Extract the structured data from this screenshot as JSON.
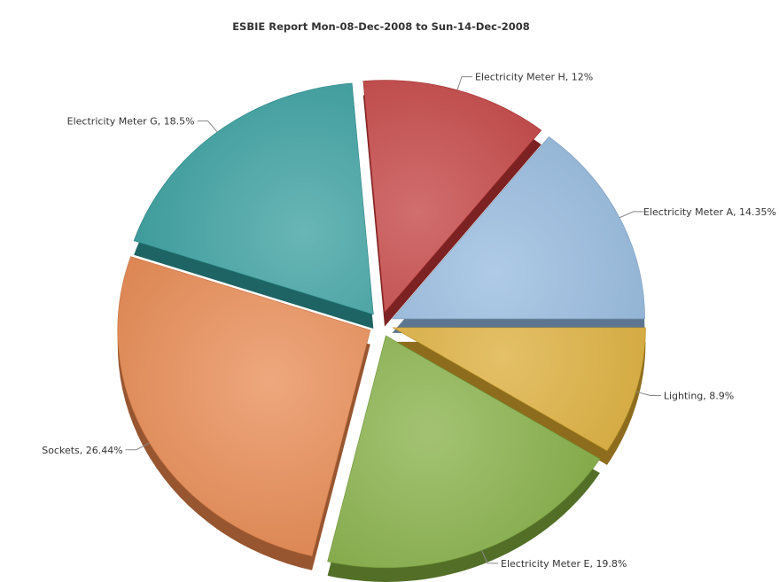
{
  "chart_data": {
    "type": "pie",
    "title": "ESBIE Report Mon-08-Dec-2008 to Sun-14-Dec-2008",
    "legend": "none",
    "slices": [
      {
        "name": "Electricity Meter A",
        "value": 14.35,
        "label": "Electricity Meter A, 14.35%",
        "color": "#8fb6dc"
      },
      {
        "name": "Electricity Meter H",
        "value": 12,
        "label": "Electricity Meter H, 12%",
        "color": "#bf3535"
      },
      {
        "name": "Electricity Meter G",
        "value": 18.5,
        "label": "Electricity Meter G, 18.5%",
        "color": "#2e9a9a"
      },
      {
        "name": "Sockets",
        "value": 26.44,
        "label": "Sockets, 26.44%",
        "color": "#e8854a"
      },
      {
        "name": "Electricity Meter E",
        "value": 19.8,
        "label": "Electricity Meter E, 19.8%",
        "color": "#7fab3c"
      },
      {
        "name": "Lighting",
        "value": 8.9,
        "label": "Lighting, 8.9%",
        "color": "#d9a82c"
      }
    ]
  }
}
